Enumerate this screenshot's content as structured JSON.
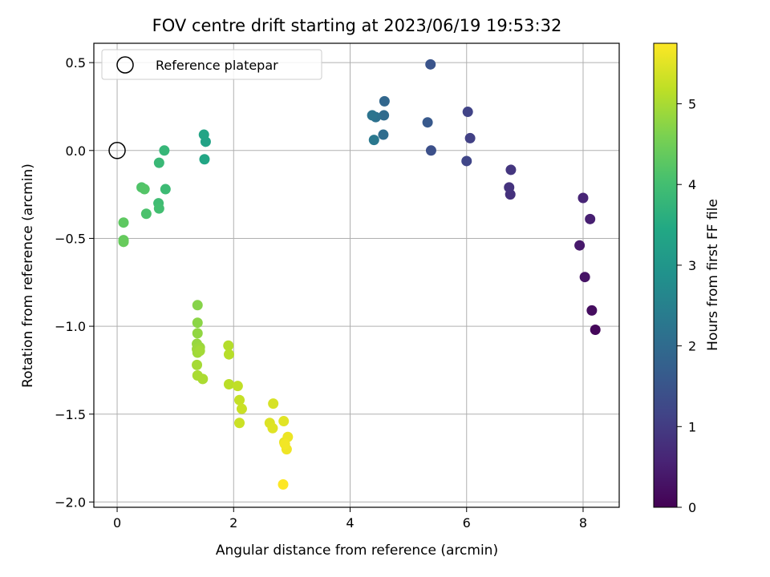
{
  "chart_data": {
    "type": "scatter",
    "title": "FOV centre drift starting at 2023/06/19 19:53:32",
    "xlabel": "Angular distance from reference (arcmin)",
    "ylabel": "Rotation from reference (arcmin)",
    "xlim": [
      -0.4,
      8.62
    ],
    "ylim": [
      -2.03,
      0.61
    ],
    "xticks": [
      0,
      2,
      4,
      6,
      8
    ],
    "yticks": [
      0.5,
      0.0,
      -0.5,
      -1.0,
      -1.5,
      -2.0
    ],
    "xtick_labels": [
      "0",
      "2",
      "4",
      "6",
      "8"
    ],
    "ytick_labels": [
      "0.5",
      "0.0",
      "−0.5",
      "−1.0",
      "−1.5",
      "−2.0"
    ],
    "grid": true,
    "legend": {
      "position": "top-left",
      "entries": [
        "Reference platepar"
      ]
    },
    "reference_point": {
      "x": 0.0,
      "y": 0.0
    },
    "colorbar": {
      "label": "Hours from first FF file",
      "colormap": "viridis",
      "range": [
        0,
        5.75
      ],
      "ticks": [
        0,
        1,
        2,
        3,
        4,
        5
      ],
      "tick_labels": [
        "0",
        "1",
        "2",
        "3",
        "4",
        "5"
      ]
    },
    "points": [
      {
        "x": 8.21,
        "y": -1.02,
        "hours": 0.1
      },
      {
        "x": 8.15,
        "y": -0.91,
        "hours": 0.2
      },
      {
        "x": 8.03,
        "y": -0.72,
        "hours": 0.3
      },
      {
        "x": 7.94,
        "y": -0.54,
        "hours": 0.4
      },
      {
        "x": 8.12,
        "y": -0.39,
        "hours": 0.5
      },
      {
        "x": 8.0,
        "y": -0.27,
        "hours": 0.6
      },
      {
        "x": 6.75,
        "y": -0.25,
        "hours": 0.8
      },
      {
        "x": 6.73,
        "y": -0.21,
        "hours": 0.85
      },
      {
        "x": 6.76,
        "y": -0.11,
        "hours": 0.9
      },
      {
        "x": 6.06,
        "y": 0.07,
        "hours": 1.1
      },
      {
        "x": 6.02,
        "y": 0.22,
        "hours": 1.15
      },
      {
        "x": 6.0,
        "y": -0.06,
        "hours": 1.2
      },
      {
        "x": 5.39,
        "y": 0.0,
        "hours": 1.4
      },
      {
        "x": 5.38,
        "y": 0.49,
        "hours": 1.5
      },
      {
        "x": 5.33,
        "y": 0.16,
        "hours": 1.6
      },
      {
        "x": 4.59,
        "y": 0.28,
        "hours": 1.9
      },
      {
        "x": 4.58,
        "y": 0.2,
        "hours": 2.0
      },
      {
        "x": 4.57,
        "y": 0.09,
        "hours": 2.05
      },
      {
        "x": 4.44,
        "y": 0.19,
        "hours": 2.15
      },
      {
        "x": 4.38,
        "y": 0.2,
        "hours": 2.2
      },
      {
        "x": 4.41,
        "y": 0.06,
        "hours": 2.3
      },
      {
        "x": 1.52,
        "y": 0.05,
        "hours": 3.3
      },
      {
        "x": 1.49,
        "y": 0.09,
        "hours": 3.35
      },
      {
        "x": 1.5,
        "y": -0.05,
        "hours": 3.4
      },
      {
        "x": 0.81,
        "y": 0.0,
        "hours": 3.8
      },
      {
        "x": 0.72,
        "y": -0.07,
        "hours": 3.85
      },
      {
        "x": 0.83,
        "y": -0.22,
        "hours": 3.9
      },
      {
        "x": 0.71,
        "y": -0.3,
        "hours": 3.95
      },
      {
        "x": 0.72,
        "y": -0.33,
        "hours": 4.0
      },
      {
        "x": 0.5,
        "y": -0.36,
        "hours": 4.1
      },
      {
        "x": 0.42,
        "y": -0.21,
        "hours": 4.15
      },
      {
        "x": 0.47,
        "y": -0.22,
        "hours": 4.2
      },
      {
        "x": 0.11,
        "y": -0.41,
        "hours": 4.3
      },
      {
        "x": 0.11,
        "y": -0.51,
        "hours": 4.35
      },
      {
        "x": 0.11,
        "y": -0.52,
        "hours": 4.4
      },
      {
        "x": 1.38,
        "y": -0.88,
        "hours": 4.7
      },
      {
        "x": 1.38,
        "y": -0.98,
        "hours": 4.75
      },
      {
        "x": 1.38,
        "y": -1.04,
        "hours": 4.8
      },
      {
        "x": 1.37,
        "y": -1.1,
        "hours": 4.85
      },
      {
        "x": 1.42,
        "y": -1.12,
        "hours": 4.88
      },
      {
        "x": 1.37,
        "y": -1.13,
        "hours": 4.9
      },
      {
        "x": 1.38,
        "y": -1.15,
        "hours": 4.92
      },
      {
        "x": 1.42,
        "y": -1.14,
        "hours": 4.95
      },
      {
        "x": 1.37,
        "y": -1.22,
        "hours": 4.97
      },
      {
        "x": 1.38,
        "y": -1.28,
        "hours": 5.0
      },
      {
        "x": 1.47,
        "y": -1.3,
        "hours": 5.02
      },
      {
        "x": 1.91,
        "y": -1.11,
        "hours": 5.1
      },
      {
        "x": 1.92,
        "y": -1.16,
        "hours": 5.12
      },
      {
        "x": 1.92,
        "y": -1.33,
        "hours": 5.15
      },
      {
        "x": 2.07,
        "y": -1.34,
        "hours": 5.2
      },
      {
        "x": 2.1,
        "y": -1.42,
        "hours": 5.25
      },
      {
        "x": 2.14,
        "y": -1.47,
        "hours": 5.28
      },
      {
        "x": 2.1,
        "y": -1.55,
        "hours": 5.3
      },
      {
        "x": 2.68,
        "y": -1.44,
        "hours": 5.4
      },
      {
        "x": 2.62,
        "y": -1.55,
        "hours": 5.45
      },
      {
        "x": 2.67,
        "y": -1.58,
        "hours": 5.48
      },
      {
        "x": 2.86,
        "y": -1.54,
        "hours": 5.5
      },
      {
        "x": 2.87,
        "y": -1.66,
        "hours": 5.55
      },
      {
        "x": 2.93,
        "y": -1.63,
        "hours": 5.6
      },
      {
        "x": 2.91,
        "y": -1.7,
        "hours": 5.62
      },
      {
        "x": 2.88,
        "y": -1.67,
        "hours": 5.65
      },
      {
        "x": 2.85,
        "y": -1.9,
        "hours": 5.75
      }
    ]
  }
}
